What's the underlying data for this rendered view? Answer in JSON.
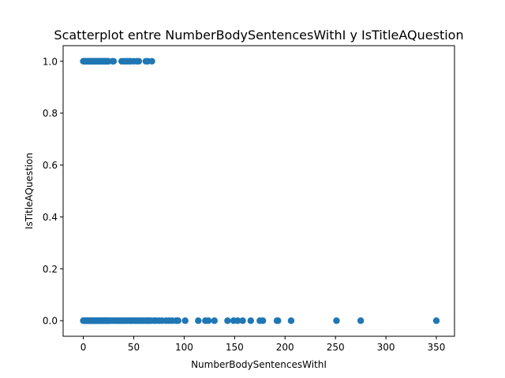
{
  "chart_data": {
    "type": "scatter",
    "title": "Scatterplot entre NumberBodySentencesWithI y IsTitleAQuestion",
    "xlabel": "NumberBodySentencesWithI",
    "ylabel": "IsTitleAQuestion",
    "xlim": [
      -20,
      368
    ],
    "ylim": [
      -0.06,
      1.06
    ],
    "xticks": [
      0,
      50,
      100,
      150,
      200,
      250,
      300,
      350
    ],
    "yticks": [
      0.0,
      0.2,
      0.4,
      0.6,
      0.8,
      1.0
    ],
    "xtick_labels": [
      "0",
      "50",
      "100",
      "150",
      "200",
      "250",
      "300",
      "350"
    ],
    "ytick_labels": [
      "0.0",
      "0.2",
      "0.4",
      "0.6",
      "0.8",
      "1.0"
    ],
    "grid": false,
    "marker_color": "#1f77b4",
    "series": [
      {
        "x": [
          0,
          1,
          2,
          3,
          4,
          5,
          6,
          7,
          8,
          9,
          10,
          11,
          12,
          13,
          14,
          15,
          16,
          17,
          18,
          19,
          20,
          21,
          22,
          23,
          24,
          25,
          26,
          28,
          30,
          32,
          34,
          35,
          37,
          38,
          40,
          41,
          43,
          45,
          47,
          48,
          50,
          52,
          53,
          55,
          57,
          58,
          60,
          62,
          64,
          65,
          67,
          70,
          72,
          75,
          78,
          82,
          85,
          88,
          92,
          94,
          101,
          114,
          121,
          124,
          130,
          143,
          149,
          153,
          158,
          166,
          175,
          178,
          192,
          193,
          206,
          251,
          275,
          350,
          0,
          1,
          2,
          3,
          4,
          5,
          6,
          7,
          8,
          9,
          10,
          11,
          12,
          13,
          14,
          15,
          16,
          17,
          18,
          19,
          20,
          21,
          22,
          23,
          24,
          25,
          29,
          30,
          38,
          40,
          42,
          44,
          46,
          47,
          50,
          53,
          55,
          62,
          64,
          68
        ],
        "y": [
          0,
          0,
          0,
          0,
          0,
          0,
          0,
          0,
          0,
          0,
          0,
          0,
          0,
          0,
          0,
          0,
          0,
          0,
          0,
          0,
          0,
          0,
          0,
          0,
          0,
          0,
          0,
          0,
          0,
          0,
          0,
          0,
          0,
          0,
          0,
          0,
          0,
          0,
          0,
          0,
          0,
          0,
          0,
          0,
          0,
          0,
          0,
          0,
          0,
          0,
          0,
          0,
          0,
          0,
          0,
          0,
          0,
          0,
          0,
          0,
          0,
          0,
          0,
          0,
          0,
          0,
          0,
          0,
          0,
          0,
          0,
          0,
          0,
          0,
          0,
          0,
          0,
          0,
          1,
          1,
          1,
          1,
          1,
          1,
          1,
          1,
          1,
          1,
          1,
          1,
          1,
          1,
          1,
          1,
          1,
          1,
          1,
          1,
          1,
          1,
          1,
          1,
          1,
          1,
          1,
          1,
          1,
          1,
          1,
          1,
          1,
          1,
          1,
          1,
          1,
          1,
          1,
          1
        ]
      }
    ]
  }
}
